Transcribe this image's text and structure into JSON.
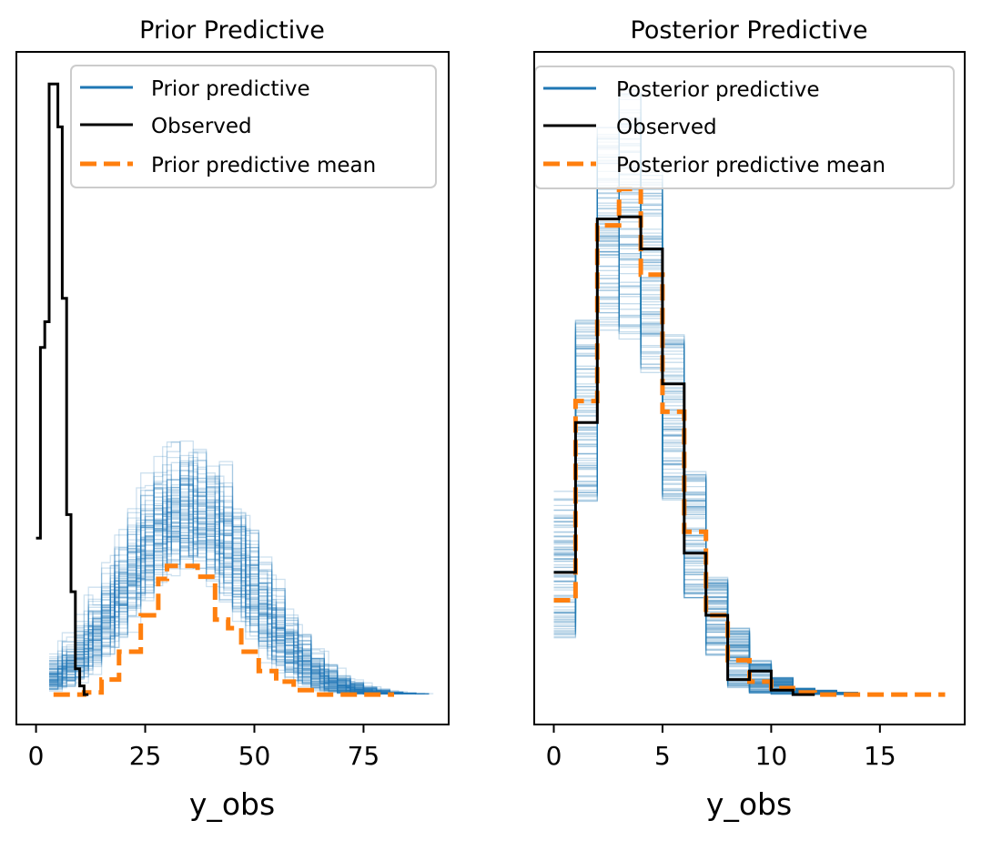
{
  "colors": {
    "predictive": "#1f77b4",
    "observed": "#000000",
    "mean": "#ff7f0e",
    "legend_border": "#cccccc"
  },
  "chart_data": [
    {
      "type": "line",
      "title": "Prior Predictive",
      "xlabel": "y_obs",
      "ylabel": "",
      "xlim": [
        -4.5,
        94.5
      ],
      "ylim": [
        -0.014,
        0.3
      ],
      "xticks": [
        "0",
        "25",
        "50",
        "75"
      ],
      "xtick_values": [
        0,
        25,
        50,
        75
      ],
      "grid": false,
      "legend": {
        "placement": "top-right",
        "entries": [
          "Prior predictive",
          "Observed",
          "Prior predictive mean"
        ]
      },
      "observed": {
        "edges": [
          0,
          1,
          2,
          3,
          5,
          6,
          7,
          8,
          9,
          10,
          11,
          12
        ],
        "density": [
          0.073,
          0.162,
          0.174,
          0.285,
          0.265,
          0.185,
          0.084,
          0.048,
          0.012,
          0.004,
          0.0
        ]
      },
      "mean": {
        "edges": [
          4,
          11,
          15,
          19,
          24,
          28,
          30,
          33,
          37,
          41,
          44,
          47,
          51,
          55,
          59,
          64,
          69,
          73,
          78,
          82
        ],
        "density": [
          0.0,
          0.001,
          0.007,
          0.02,
          0.037,
          0.054,
          0.06,
          0.06,
          0.055,
          0.035,
          0.031,
          0.02,
          0.011,
          0.006,
          0.002,
          0.0,
          0.0,
          0.0,
          0.0
        ]
      },
      "predictive_samples": {
        "count": 100,
        "center": 35,
        "spread": 14,
        "peak_density": 0.088
      }
    },
    {
      "type": "line",
      "title": "Posterior Predictive",
      "xlabel": "y_obs",
      "ylabel": "",
      "xlim": [
        -0.9,
        18.9
      ],
      "ylim": [
        -0.014,
        0.3
      ],
      "xticks": [
        "0",
        "5",
        "10",
        "15"
      ],
      "xtick_values": [
        0,
        5,
        10,
        15
      ],
      "grid": false,
      "legend": {
        "placement": "top-right",
        "entries": [
          "Posterior predictive",
          "Observed",
          "Posterior predictive mean"
        ]
      },
      "observed": {
        "edges": [
          0,
          1,
          2,
          3,
          4,
          5,
          6,
          7,
          8,
          9,
          10,
          11,
          12
        ],
        "density": [
          0.057,
          0.127,
          0.222,
          0.223,
          0.208,
          0.145,
          0.066,
          0.037,
          0.007,
          0.011,
          0.002,
          0.0
        ]
      },
      "mean": {
        "edges": [
          0,
          1,
          2,
          3,
          4,
          5,
          6,
          7,
          8,
          9,
          10,
          11,
          12,
          13,
          14,
          15,
          16,
          17,
          18
        ],
        "density": [
          0.044,
          0.137,
          0.219,
          0.236,
          0.196,
          0.132,
          0.076,
          0.037,
          0.016,
          0.006,
          0.003,
          0.001,
          0.0,
          0.0,
          0.0,
          0.0,
          0.0,
          0.0
        ]
      },
      "predictive_samples": {
        "count": 100,
        "bin_low": [
          0.026,
          0.09,
          0.17,
          0.165,
          0.15,
          0.09,
          0.045,
          0.018,
          0.003,
          0.0005,
          0.0,
          0.0,
          0.0,
          0.0
        ],
        "bin_high": [
          0.095,
          0.175,
          0.265,
          0.285,
          0.245,
          0.168,
          0.105,
          0.055,
          0.031,
          0.016,
          0.008,
          0.003,
          0.002,
          0.001
        ]
      }
    }
  ]
}
